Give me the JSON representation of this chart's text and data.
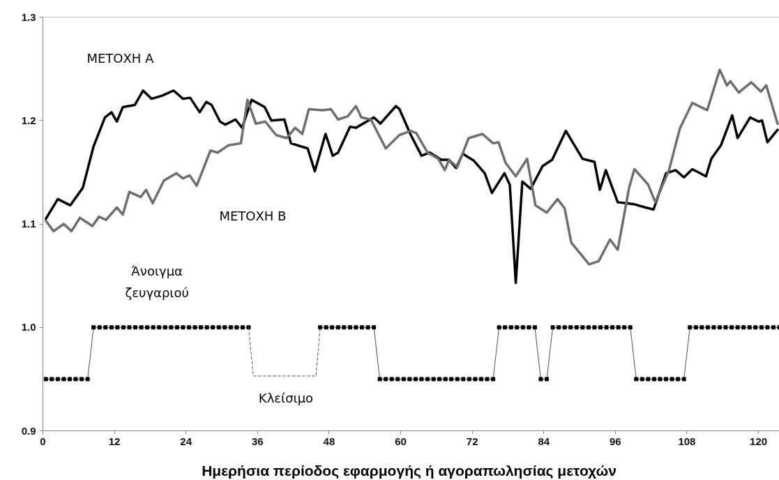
{
  "chart_data": {
    "type": "line",
    "xlabel": "Ημερήσια περίοδος εφαρμογής ή  αγοραπωλησίας μετοχών",
    "xlim": [
      0,
      123.5
    ],
    "ylim": [
      0.9,
      1.3
    ],
    "xticks": [
      0,
      12,
      24,
      36,
      48,
      60,
      72,
      84,
      96,
      108,
      120
    ],
    "yticks": [
      {
        "value": 0.9,
        "label": "0.9"
      },
      {
        "value": 1.0,
        "label": "1.0"
      },
      {
        "value": 1.1,
        "label": "1.1"
      },
      {
        "value": 1.2,
        "label": "1.2"
      },
      {
        "value": 1.3,
        "label": "1.3"
      }
    ],
    "grid": false,
    "series": [
      {
        "color": "#000000",
        "x": [
          0.5,
          2.5,
          4.6,
          6.7,
          8.5,
          10.4,
          11.5,
          12.4,
          13.4,
          15.4,
          16.8,
          18.2,
          20,
          21.9,
          23.5,
          24.7,
          26.3,
          27.4,
          28.3,
          29.7,
          30.6,
          32.3,
          33.4,
          35,
          37.2,
          38.3,
          40.5,
          41.6,
          44.4,
          45.6,
          47.4,
          48.6,
          49.5,
          51.5,
          52.5,
          55.5,
          56.6,
          59.2,
          59.8,
          61.7,
          63.5,
          64.9,
          66.8,
          68.1,
          69.3,
          70.4,
          72.3,
          74.1,
          75.3,
          77.4,
          78.3,
          79.3,
          80.4,
          81.8,
          83.8,
          85.4,
          87.7,
          90.5,
          92.5,
          93.4,
          94.4,
          96.4,
          97.8,
          99.2,
          101,
          102.4,
          104.5,
          106.1,
          107.5,
          108.9,
          111.2,
          112.1,
          113.7,
          115.6,
          116.5,
          118.6,
          120,
          120.6,
          121.5,
          123.2
        ],
        "values": [
          1.105,
          1.124,
          1.118,
          1.135,
          1.175,
          1.203,
          1.208,
          1.199,
          1.213,
          1.215,
          1.229,
          1.221,
          1.224,
          1.229,
          1.221,
          1.222,
          1.208,
          1.218,
          1.215,
          1.199,
          1.196,
          1.201,
          1.193,
          1.22,
          1.213,
          1.2,
          1.201,
          1.178,
          1.173,
          1.151,
          1.187,
          1.166,
          1.169,
          1.194,
          1.193,
          1.203,
          1.197,
          1.214,
          1.211,
          1.186,
          1.166,
          1.169,
          1.162,
          1.162,
          1.154,
          1.168,
          1.161,
          1.149,
          1.13,
          1.149,
          1.138,
          1.043,
          1.141,
          1.134,
          1.156,
          1.162,
          1.19,
          1.163,
          1.16,
          1.133,
          1.152,
          1.121,
          1.12,
          1.119,
          1.116,
          1.114,
          1.149,
          1.152,
          1.145,
          1.153,
          1.146,
          1.163,
          1.176,
          1.205,
          1.183,
          1.203,
          1.199,
          1.2,
          1.179,
          1.191
        ]
      },
      {
        "color": "#6e6e6e",
        "x": [
          0.5,
          1.8,
          3.5,
          4.8,
          6.2,
          8.3,
          9.4,
          10.6,
          12.4,
          13.4,
          14.5,
          16.4,
          17.3,
          18.4,
          20.3,
          22.4,
          23.5,
          24.6,
          25.8,
          28.1,
          29.3,
          31.1,
          33.2,
          34.3,
          35.7,
          37.3,
          39.1,
          40.9,
          42.3,
          43.5,
          44.6,
          46.9,
          48.3,
          49.5,
          51.1,
          52.5,
          53.4,
          55,
          57.5,
          59.8,
          61.7,
          62.6,
          64.5,
          66.3,
          67.4,
          68.1,
          69.5,
          71.4,
          73.7,
          75.5,
          76.4,
          77.6,
          79.3,
          81.2,
          82.6,
          84.5,
          86.3,
          87.5,
          88.6,
          91.6,
          93.2,
          95.1,
          96.4,
          98.3,
          99.2,
          101.5,
          102.7,
          105,
          106.8,
          108.9,
          111.4,
          113.5,
          114.7,
          115.3,
          116.7,
          118.8,
          120.4,
          121.3,
          123.2
        ],
        "values": [
          1.103,
          1.093,
          1.1,
          1.093,
          1.106,
          1.098,
          1.107,
          1.104,
          1.116,
          1.109,
          1.131,
          1.126,
          1.133,
          1.12,
          1.142,
          1.149,
          1.144,
          1.147,
          1.137,
          1.171,
          1.169,
          1.176,
          1.178,
          1.22,
          1.197,
          1.199,
          1.186,
          1.183,
          1.193,
          1.187,
          1.211,
          1.21,
          1.211,
          1.201,
          1.204,
          1.214,
          1.203,
          1.201,
          1.173,
          1.186,
          1.19,
          1.188,
          1.169,
          1.163,
          1.152,
          1.162,
          1.155,
          1.183,
          1.187,
          1.178,
          1.179,
          1.159,
          1.146,
          1.163,
          1.118,
          1.111,
          1.124,
          1.115,
          1.082,
          1.061,
          1.064,
          1.085,
          1.075,
          1.135,
          1.153,
          1.138,
          1.121,
          1.152,
          1.192,
          1.217,
          1.21,
          1.249,
          1.234,
          1.238,
          1.227,
          1.237,
          1.228,
          1.234,
          1.197
        ]
      },
      {
        "color": "#000000",
        "marker": "square",
        "x": [
          0.5,
          1.5,
          2.5,
          3.5,
          4.5,
          5.5,
          6.5,
          7.5,
          8.5,
          9.5,
          10.5,
          11.5,
          12.5,
          13.5,
          14.5,
          15.5,
          16.5,
          17.5,
          18.5,
          19.5,
          20.5,
          21.5,
          22.5,
          23.5,
          24.5,
          25.5,
          26.5,
          27.5,
          28.5,
          29.5,
          30.5,
          31.5,
          32.5,
          33.5,
          34.5,
          35.5,
          36.5,
          37.5,
          38.5,
          39.5,
          40.5,
          41.5,
          42.5,
          43.5,
          44.5,
          45.5,
          46.5,
          47.5,
          48.5,
          49.5,
          50.5,
          51.5,
          52.5,
          53.5,
          54.5,
          55.5,
          56.5,
          57.5,
          58.5,
          59.5,
          60.5,
          61.5,
          62.5,
          63.5,
          64.5,
          65.5,
          66.5,
          67.5,
          68.5,
          69.5,
          70.5,
          71.5,
          72.5,
          73.5,
          74.5,
          75.5,
          76.5,
          77.5,
          78.5,
          79.5,
          80.5,
          81.5,
          82.5,
          83.5,
          84.5,
          85.5,
          86.5,
          87.5,
          88.5,
          89.5,
          90.5,
          91.5,
          92.5,
          93.5,
          94.5,
          95.5,
          96.5,
          97.5,
          98.5,
          99.5,
          100.5,
          101.5,
          102.5,
          103.5,
          104.5,
          105.5,
          106.5,
          107.5,
          108.5,
          109.5,
          110.5,
          111.5,
          112.5,
          113.5,
          114.5,
          115.5,
          116.5,
          117.5,
          118.5,
          119.5,
          120.5,
          121.5,
          122.5,
          123.5
        ],
        "values": [
          0.95,
          0.95,
          0.95,
          0.95,
          0.95,
          0.95,
          0.95,
          0.95,
          1.0,
          1.0,
          1.0,
          1.0,
          1.0,
          1.0,
          1.0,
          1.0,
          1.0,
          1.0,
          1.0,
          1.0,
          1.0,
          1.0,
          1.0,
          1.0,
          1.0,
          1.0,
          1.0,
          1.0,
          1.0,
          1.0,
          1.0,
          1.0,
          1.0,
          1.0,
          1.0,
          null,
          null,
          null,
          null,
          null,
          null,
          null,
          null,
          null,
          null,
          null,
          1.0,
          1.0,
          1.0,
          1.0,
          1.0,
          1.0,
          1.0,
          1.0,
          1.0,
          1.0,
          0.95,
          0.95,
          0.95,
          0.95,
          0.95,
          0.95,
          0.95,
          0.95,
          0.95,
          0.95,
          0.95,
          0.95,
          0.95,
          0.95,
          0.95,
          0.95,
          0.95,
          0.95,
          0.95,
          0.95,
          1.0,
          1.0,
          1.0,
          1.0,
          1.0,
          1.0,
          1.0,
          0.95,
          0.95,
          1.0,
          1.0,
          1.0,
          1.0,
          1.0,
          1.0,
          1.0,
          1.0,
          1.0,
          1.0,
          1.0,
          1.0,
          1.0,
          1.0,
          0.95,
          0.95,
          0.95,
          0.95,
          0.95,
          0.95,
          0.95,
          0.95,
          0.95,
          1.0,
          1.0,
          1.0,
          1.0,
          1.0,
          1.0,
          1.0,
          1.0,
          1.0,
          1.0,
          1.0,
          1.0,
          1.0,
          1.0,
          1.0,
          1.0
        ]
      },
      {
        "color": "#555555",
        "line_style": "dashed",
        "x": [
          34.5,
          35.3,
          45.8,
          46.5
        ],
        "values": [
          1.0,
          0.953,
          0.953,
          1.0
        ]
      }
    ],
    "annotations": [
      "ΜΕΤΟΧΗ Α",
      "ΜΕΤΟΧΗ Β",
      "Άνοιγμα\nζευγαριού",
      "Κλείσιμο"
    ]
  }
}
